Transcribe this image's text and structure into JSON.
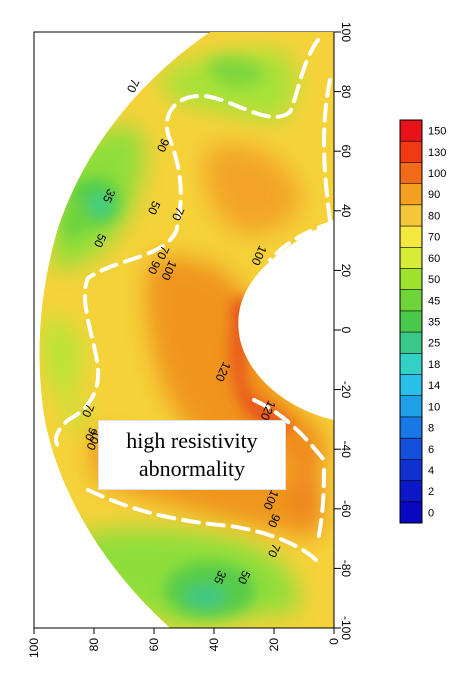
{
  "chart_data": {
    "type": "heatmap",
    "title": "",
    "xlabel": "",
    "ylabel": "",
    "bottom_axis": {
      "ticks": [
        100,
        80,
        60,
        40,
        20,
        0
      ],
      "tick_labels": [
        "100",
        "80",
        "60",
        "40",
        "20",
        "0"
      ]
    },
    "right_axis": {
      "ticks": [
        100,
        80,
        60,
        40,
        20,
        0,
        -20,
        -40,
        -60,
        -80,
        -100
      ],
      "tick_labels": [
        "100",
        "80",
        "60",
        "40",
        "20",
        "0",
        "-20",
        "-40",
        "-60",
        "-80",
        "-100"
      ]
    },
    "colorbar": {
      "levels": [
        150,
        130,
        100,
        90,
        80,
        70,
        60,
        50,
        45,
        35,
        25,
        18,
        14,
        10,
        8,
        6,
        4,
        2,
        0
      ],
      "labels": [
        "150",
        "130",
        "100",
        "90",
        "80",
        "70",
        "60",
        "50",
        "45",
        "35",
        "25",
        "18",
        "14",
        "10",
        "8",
        "6",
        "4",
        "2",
        "0"
      ],
      "colors": [
        "#e8121a",
        "#f03a14",
        "#f06a18",
        "#f5a020",
        "#f5c63a",
        "#f5e840",
        "#d6ee3a",
        "#9ee22e",
        "#6fd43a",
        "#4ac84c",
        "#3ac88a",
        "#34d0c6",
        "#28c0e8",
        "#1ea0e8",
        "#1878e6",
        "#1450dc",
        "#1030d0",
        "#0c18c8",
        "#0808c0"
      ]
    },
    "contour_labels": [
      {
        "text": "70",
        "x": 67,
        "y": 82
      },
      {
        "text": "90",
        "x": 57,
        "y": 62
      },
      {
        "text": "35",
        "x": 75,
        "y": 45
      },
      {
        "text": "50",
        "x": 60,
        "y": 41
      },
      {
        "text": "70",
        "x": 52,
        "y": 39
      },
      {
        "text": "50",
        "x": 78,
        "y": 30
      },
      {
        "text": "70",
        "x": 57,
        "y": 26
      },
      {
        "text": "90",
        "x": 60,
        "y": 21
      },
      {
        "text": "100",
        "x": 55,
        "y": 20
      },
      {
        "text": "100",
        "x": 25,
        "y": 25
      },
      {
        "text": "120",
        "x": 37,
        "y": -14
      },
      {
        "text": "120",
        "x": 22,
        "y": -27
      },
      {
        "text": "70",
        "x": 82,
        "y": -27
      },
      {
        "text": "90",
        "x": 81,
        "y": -35
      },
      {
        "text": "100",
        "x": 80,
        "y": -37
      },
      {
        "text": "100",
        "x": 21,
        "y": -57
      },
      {
        "text": "90",
        "x": 20,
        "y": -64
      },
      {
        "text": "70",
        "x": 20,
        "y": -74
      },
      {
        "text": "50",
        "x": 30,
        "y": -83
      },
      {
        "text": "35",
        "x": 38,
        "y": -83
      }
    ],
    "annotation": {
      "line1": "high resistivity",
      "line2": "abnormality"
    }
  }
}
